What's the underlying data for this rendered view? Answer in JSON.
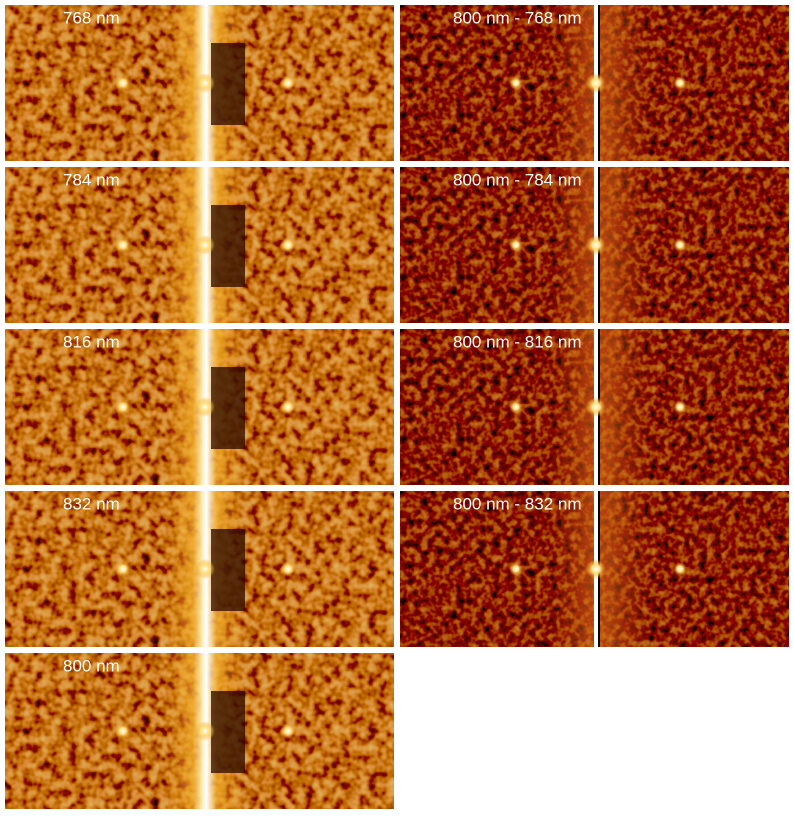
{
  "rows": [
    {
      "left": "768 nm",
      "right": "800 nm - 768 nm"
    },
    {
      "left": "784 nm",
      "right": "800 nm - 784 nm"
    },
    {
      "left": "816 nm",
      "right": "800 nm - 816 nm"
    },
    {
      "left": "832 nm",
      "right": "800 nm - 832 nm"
    },
    {
      "left": "800 nm"
    }
  ]
}
